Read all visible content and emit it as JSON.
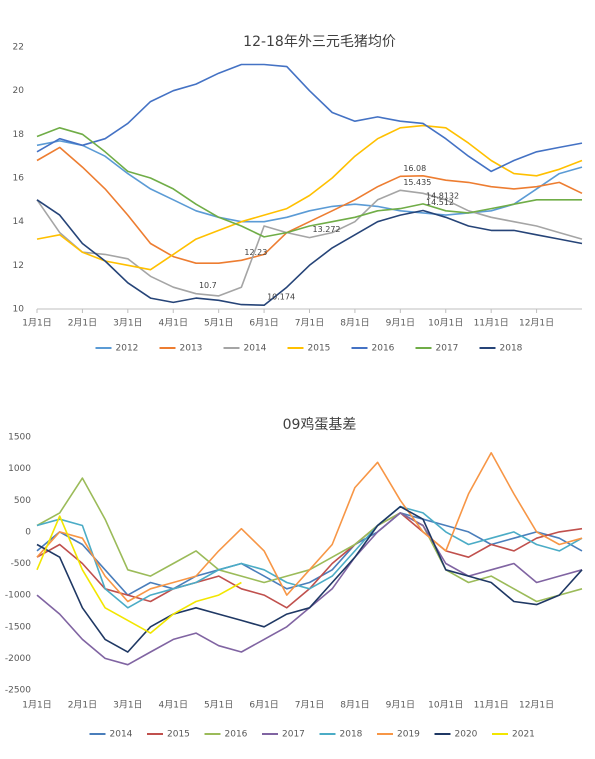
{
  "chart_data": [
    {
      "type": "line",
      "title": "12-18年外三元毛猪均价",
      "categories": [
        "1月1日",
        null,
        "2月1日",
        null,
        "3月1日",
        null,
        "4月1日",
        null,
        "5月1日",
        null,
        "6月1日",
        null,
        "7月1日",
        null,
        "8月1日",
        null,
        "9月1日",
        null,
        "10月1日",
        null,
        "11月1日",
        null,
        "12月1日",
        null,
        null
      ],
      "ylim": [
        10,
        22
      ],
      "yticks": [
        10,
        12,
        14,
        16,
        18,
        20,
        22
      ],
      "series": [
        {
          "name": "2012",
          "color": "#5b9bd5",
          "values": [
            17.5,
            17.7,
            17.5,
            17,
            16.2,
            15.5,
            15,
            14.5,
            14.2,
            14,
            14,
            14.2,
            14.5,
            14.7,
            14.8,
            14.7,
            14.5,
            14.4,
            14.3,
            14.4,
            14.5,
            14.8,
            15.5,
            16.2,
            16.5
          ]
        },
        {
          "name": "2013",
          "color": "#ed7d31",
          "values": [
            16.8,
            17.4,
            16.5,
            15.5,
            14.3,
            13,
            12.4,
            12.1,
            12.1,
            12.23,
            12.5,
            13.5,
            14,
            14.5,
            15,
            15.6,
            16.08,
            16.1,
            15.9,
            15.8,
            15.6,
            15.5,
            15.6,
            15.8,
            15.3
          ],
          "value_labels": [
            null,
            null,
            null,
            null,
            null,
            null,
            null,
            null,
            null,
            "12.23",
            null,
            null,
            null,
            null,
            null,
            null,
            "16.08",
            null,
            null,
            null,
            null,
            null,
            null,
            null,
            null
          ]
        },
        {
          "name": "2014",
          "color": "#a5a5a5",
          "values": [
            15,
            13.5,
            12.6,
            12.5,
            12.3,
            11.5,
            11,
            10.7,
            10.6,
            11,
            13.8,
            13.5,
            13.272,
            13.5,
            14,
            15,
            15.435,
            15.3,
            15,
            14.5,
            14.2,
            14,
            13.8,
            13.5,
            13.2
          ],
          "value_labels": [
            null,
            null,
            null,
            null,
            null,
            null,
            null,
            "10.7",
            null,
            null,
            null,
            null,
            "13.272",
            null,
            null,
            null,
            "15.435",
            null,
            null,
            null,
            null,
            null,
            null,
            null,
            null
          ]
        },
        {
          "name": "2015",
          "color": "#ffc000",
          "values": [
            13.2,
            13.4,
            12.6,
            12.2,
            12,
            11.8,
            12.5,
            13.2,
            13.6,
            14,
            14.3,
            14.6,
            15.2,
            16,
            17,
            17.8,
            18.3,
            18.4,
            18.3,
            17.6,
            16.8,
            16.2,
            16.1,
            16.4,
            16.8
          ]
        },
        {
          "name": "2016",
          "color": "#4472c4",
          "values": [
            17.2,
            17.8,
            17.5,
            17.8,
            18.5,
            19.5,
            20,
            20.3,
            20.8,
            21.2,
            21.2,
            21.1,
            20,
            19,
            18.6,
            18.8,
            18.6,
            18.5,
            17.8,
            17,
            16.3,
            16.8,
            17.2,
            17.4,
            17.6
          ]
        },
        {
          "name": "2017",
          "color": "#70ad47",
          "values": [
            17.9,
            18.3,
            18,
            17.2,
            16.3,
            16,
            15.5,
            14.8,
            14.2,
            13.8,
            13.3,
            13.5,
            13.8,
            14,
            14.2,
            14.5,
            14.6,
            14.8132,
            14.5,
            14.4,
            14.6,
            14.8,
            15,
            15,
            15
          ],
          "value_labels": [
            null,
            null,
            null,
            null,
            null,
            null,
            null,
            null,
            null,
            null,
            null,
            null,
            null,
            null,
            null,
            null,
            null,
            "14.8132",
            null,
            null,
            null,
            null,
            null,
            null,
            null
          ]
        },
        {
          "name": "2018",
          "color": "#264478",
          "values": [
            15,
            14.3,
            13,
            12.2,
            11.2,
            10.5,
            10.3,
            10.5,
            10.4,
            10.2,
            10.174,
            11,
            12,
            12.8,
            13.4,
            14,
            14.3,
            14.512,
            14.2,
            13.8,
            13.6,
            13.6,
            13.4,
            13.2,
            13
          ],
          "value_labels": [
            null,
            null,
            null,
            null,
            null,
            null,
            null,
            null,
            null,
            null,
            "10.174",
            null,
            null,
            null,
            null,
            null,
            null,
            "14.512",
            null,
            null,
            null,
            null,
            null,
            null,
            null
          ]
        }
      ]
    },
    {
      "type": "line",
      "title": "09鸡蛋基差",
      "categories": [
        "1月1日",
        null,
        "2月1日",
        null,
        "3月1日",
        null,
        "4月1日",
        null,
        "5月1日",
        null,
        "6月1日",
        null,
        "7月1日",
        null,
        "8月1日",
        null,
        "9月1日",
        null,
        "10月1日",
        null,
        "11月1日",
        null,
        "12月1日",
        null,
        null
      ],
      "ylim": [
        -2500,
        1500
      ],
      "yticks": [
        -2500,
        -2000,
        -1500,
        -1000,
        -500,
        0,
        500,
        1000,
        1500
      ],
      "series": [
        {
          "name": "2014",
          "color": "#4a7ebb",
          "values": [
            -300,
            0,
            -200,
            -600,
            -1000,
            -800,
            -900,
            -700,
            -600,
            -500,
            -700,
            -900,
            -800,
            -600,
            -200,
            0,
            300,
            200,
            100,
            0,
            -200,
            -100,
            0,
            -100,
            -300
          ]
        },
        {
          "name": "2015",
          "color": "#c0504d",
          "values": [
            -400,
            -200,
            -500,
            -900,
            -1000,
            -1100,
            -900,
            -800,
            -700,
            -900,
            -1000,
            -1200,
            -900,
            -500,
            -200,
            100,
            300,
            0,
            -300,
            -400,
            -200,
            -300,
            -100,
            0,
            50
          ]
        },
        {
          "name": "2016",
          "color": "#9bbb59",
          "values": [
            100,
            300,
            850,
            200,
            -600,
            -700,
            -500,
            -300,
            -600,
            -700,
            -800,
            -700,
            -600,
            -400,
            -200,
            100,
            300,
            100,
            -600,
            -800,
            -700,
            -900,
            -1100,
            -1000,
            -900
          ]
        },
        {
          "name": "2017",
          "color": "#8064a2",
          "values": [
            -1000,
            -1300,
            -1700,
            -2000,
            -2100,
            -1900,
            -1700,
            -1600,
            -1800,
            -1900,
            -1700,
            -1500,
            -1200,
            -900,
            -400,
            0,
            300,
            100,
            -500,
            -700,
            -600,
            -500,
            -800,
            -700,
            -600
          ]
        },
        {
          "name": "2018",
          "color": "#4bacc6",
          "values": [
            100,
            200,
            100,
            -900,
            -1200,
            -1000,
            -900,
            -800,
            -600,
            -500,
            -600,
            -800,
            -900,
            -700,
            -300,
            100,
            400,
            300,
            0,
            -200,
            -100,
            0,
            -200,
            -300,
            -100
          ]
        },
        {
          "name": "2019",
          "color": "#f79646",
          "values": [
            -400,
            0,
            -100,
            -700,
            -1100,
            -900,
            -800,
            -700,
            -300,
            50,
            -300,
            -1000,
            -600,
            -200,
            700,
            1100,
            500,
            0,
            -300,
            600,
            1250,
            600,
            0,
            -200,
            -100
          ]
        },
        {
          "name": "2020",
          "color": "#1f3864",
          "values": [
            -200,
            -400,
            -1200,
            -1700,
            -1900,
            -1500,
            -1300,
            -1200,
            -1300,
            -1400,
            -1500,
            -1300,
            -1200,
            -800,
            -400,
            100,
            400,
            200,
            -600,
            -700,
            -800,
            -1100,
            -1150,
            -1000,
            -600
          ]
        },
        {
          "name": "2021",
          "color": "#f2e600",
          "values": [
            -600,
            250,
            -600,
            -1200,
            -1400,
            -1600,
            -1300,
            -1100,
            -1000,
            -800,
            null,
            null,
            null,
            null,
            null,
            null,
            null,
            null,
            null,
            null,
            null,
            null,
            null,
            null,
            null
          ]
        }
      ]
    }
  ]
}
